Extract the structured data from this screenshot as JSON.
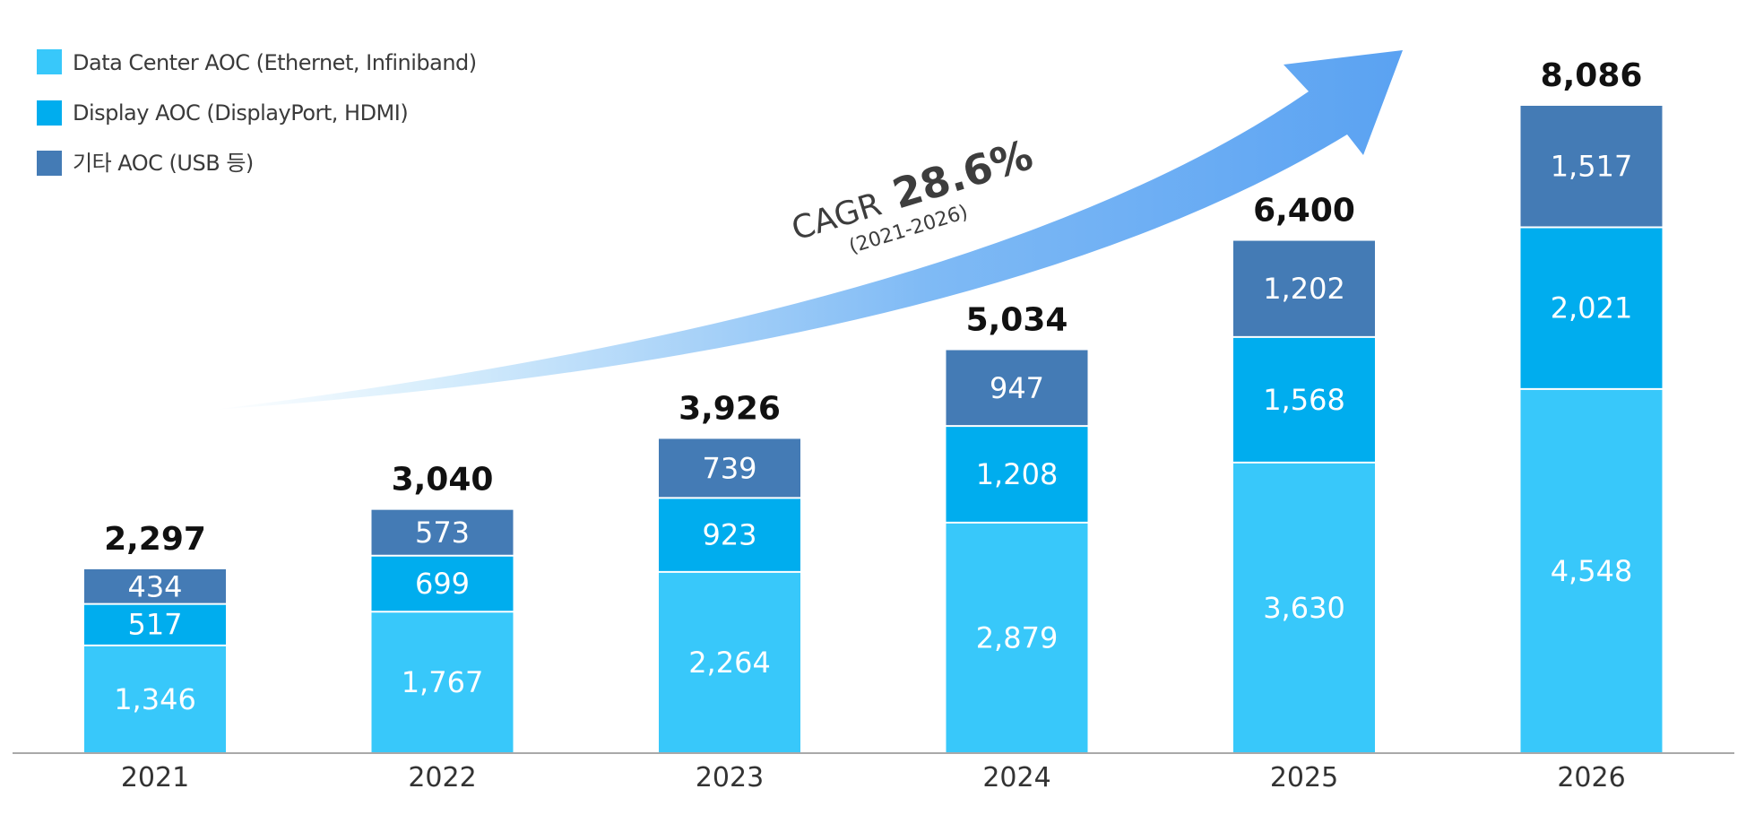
{
  "chart_data": {
    "type": "bar",
    "stacked": true,
    "categories": [
      "2021",
      "2022",
      "2023",
      "2024",
      "2025",
      "2026"
    ],
    "series": [
      {
        "name": "Data Center AOC (Ethernet, Infiniband)",
        "color": "#38C8FA",
        "values": [
          1346,
          1767,
          2264,
          2879,
          3630,
          4548
        ]
      },
      {
        "name": "Display AOC (DisplayPort, HDMI)",
        "color": "#00ADEE",
        "values": [
          517,
          699,
          923,
          1208,
          1568,
          2021
        ]
      },
      {
        "name": "기타 AOC (USB 등)",
        "color": "#447BB5",
        "values": [
          434,
          573,
          739,
          947,
          1202,
          1517
        ]
      }
    ],
    "totals": [
      2297,
      3040,
      3926,
      5034,
      6400,
      8086
    ],
    "ylim": [
      0,
      8086
    ],
    "legend_position": "top-left",
    "annotation": {
      "prefix": "CAGR",
      "value": "28.6%",
      "period": "(2021-2026)",
      "arrow_color": "#5AA2F2"
    }
  }
}
